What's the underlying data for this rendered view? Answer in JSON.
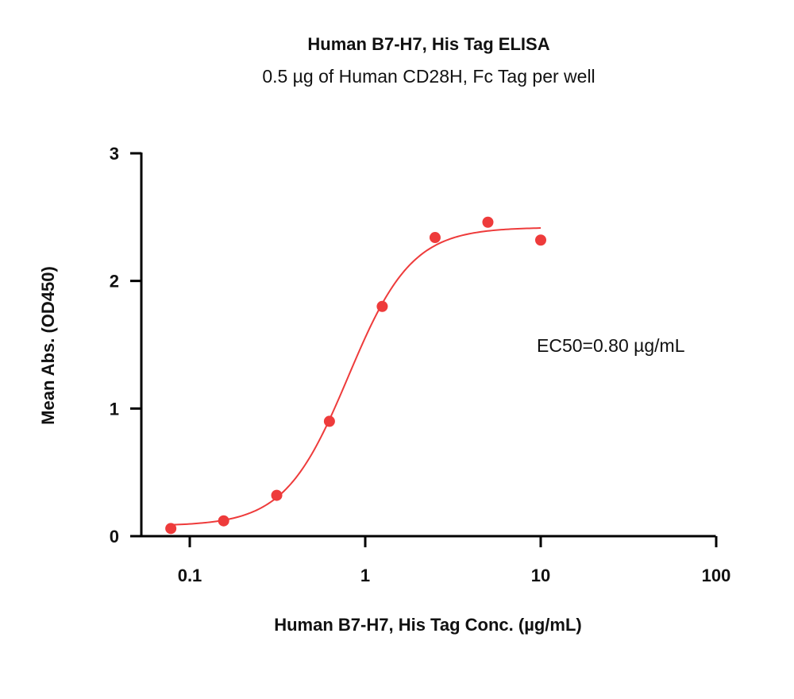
{
  "chart_data": {
    "type": "scatter",
    "title": "Human B7-H7, His Tag ELISA",
    "subtitle": "0.5 µg of Human CD28H, Fc Tag per well",
    "xlabel": "Human B7-H7, His Tag Conc. (µg/mL)",
    "ylabel": "Mean Abs. (OD450)",
    "x_scale": "log",
    "xlim": [
      0.05,
      100
    ],
    "ylim": [
      0,
      3
    ],
    "x_ticks": [
      0.1,
      1,
      10,
      100
    ],
    "x_tick_labels": [
      "0.1",
      "1",
      "10",
      "100"
    ],
    "y_ticks": [
      0,
      1,
      2,
      3
    ],
    "y_tick_labels": [
      "0",
      "1",
      "2",
      "3"
    ],
    "grid": false,
    "legend": "none",
    "series": [
      {
        "x": [
          0.078,
          0.156,
          0.313,
          0.625,
          1.25,
          2.5,
          5,
          10
        ],
        "y": [
          0.06,
          0.12,
          0.32,
          0.9,
          1.8,
          2.34,
          2.46,
          2.32
        ],
        "color": "#ee3b3b"
      }
    ],
    "fit": {
      "model": "4PL",
      "bottom": 0.08,
      "top": 2.42,
      "ec50": 0.8,
      "hill": 2.4,
      "x_range": [
        0.078,
        10
      ],
      "color": "#ee3b3b"
    },
    "annotation": "EC50=0.80 µg/mL"
  }
}
